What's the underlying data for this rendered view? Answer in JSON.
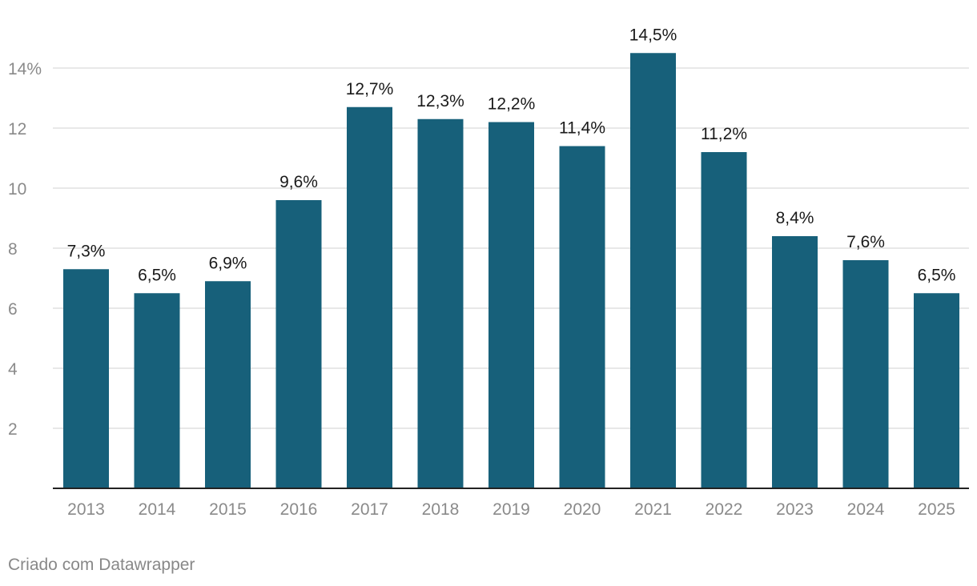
{
  "chart_data": {
    "type": "bar",
    "categories": [
      "2013",
      "2014",
      "2015",
      "2016",
      "2017",
      "2018",
      "2019",
      "2020",
      "2021",
      "2022",
      "2023",
      "2024",
      "2025"
    ],
    "values": [
      7.3,
      6.5,
      6.9,
      9.6,
      12.7,
      12.3,
      12.2,
      11.4,
      14.5,
      11.2,
      8.4,
      7.6,
      6.5
    ],
    "data_labels": [
      "7,3%",
      "6,5%",
      "6,9%",
      "9,6%",
      "12,7%",
      "12,3%",
      "12,2%",
      "11,4%",
      "14,5%",
      "11,2%",
      "8,4%",
      "7,6%",
      "6,5%"
    ],
    "y_ticks": [
      2,
      4,
      6,
      8,
      10,
      12,
      14
    ],
    "y_tick_labels": [
      "2",
      "4",
      "6",
      "8",
      "10",
      "12",
      "14%"
    ],
    "ylim": [
      0,
      14.5
    ],
    "grid": true,
    "bar_color": "#17607a",
    "gridline_color": "#e0e0e0",
    "baseline_color": "#222222",
    "tick_label_color": "#8a8a8a",
    "data_label_color": "#1a1a1a"
  },
  "footer": {
    "credit": "Criado com Datawrapper"
  }
}
